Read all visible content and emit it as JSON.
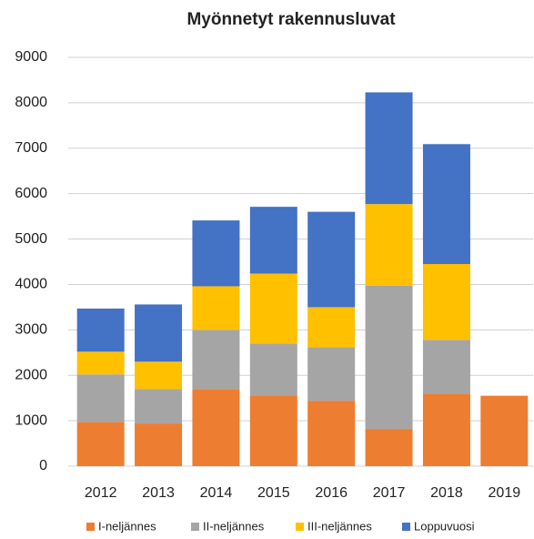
{
  "chart_data": {
    "type": "stacked_bar",
    "title": "Myönnetyt rakennusluvat",
    "categories": [
      "2012",
      "2013",
      "2014",
      "2015",
      "2016",
      "2017",
      "2018",
      "2019"
    ],
    "series": [
      {
        "name": "I-neljännes",
        "color": "#ed7d31",
        "values": [
          970,
          940,
          1700,
          1560,
          1440,
          820,
          1600,
          1550
        ]
      },
      {
        "name": "II-neljännes",
        "color": "#a5a5a5",
        "values": [
          1050,
          760,
          1300,
          1140,
          1180,
          3150,
          1180,
          null
        ]
      },
      {
        "name": "III-neljännes",
        "color": "#ffc000",
        "values": [
          500,
          600,
          960,
          1540,
          880,
          1800,
          1670,
          null
        ]
      },
      {
        "name": "Loppuvuosi",
        "color": "#4472c4",
        "values": [
          950,
          1260,
          1450,
          1470,
          2100,
          2460,
          2640,
          null
        ]
      }
    ],
    "ylim": [
      0,
      9000
    ],
    "yticks": [
      0,
      1000,
      2000,
      3000,
      4000,
      5000,
      6000,
      7000,
      8000,
      9000
    ],
    "grid": true,
    "legend": "bottom"
  }
}
